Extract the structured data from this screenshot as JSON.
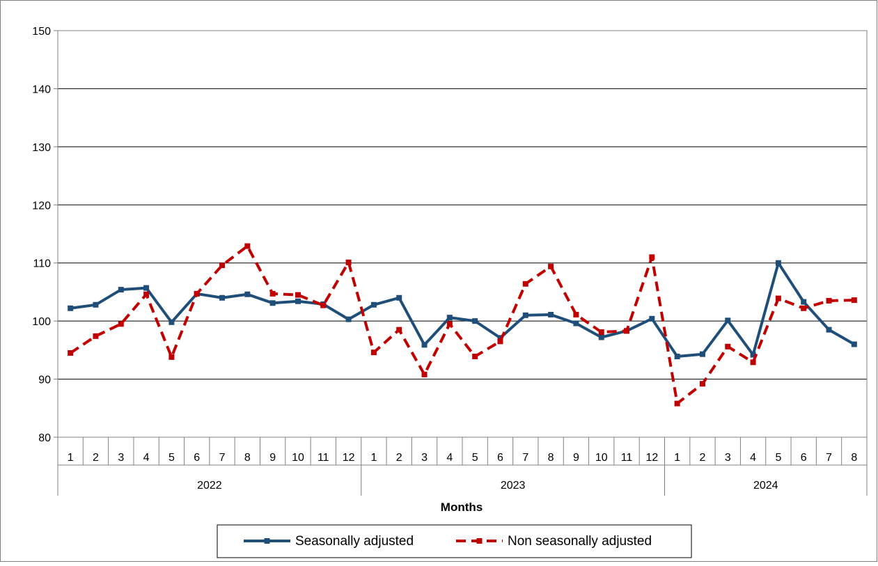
{
  "chart_data": {
    "type": "line",
    "xlabel": "Months",
    "ylabel": "",
    "ylim": [
      80,
      150
    ],
    "yticks": [
      80,
      90,
      100,
      110,
      120,
      130,
      140,
      150
    ],
    "grid": "horizontal",
    "legend_position": "bottom",
    "groups": [
      {
        "label": "2022",
        "months": [
          "1",
          "2",
          "3",
          "4",
          "5",
          "6",
          "7",
          "8",
          "9",
          "10",
          "11",
          "12"
        ]
      },
      {
        "label": "2023",
        "months": [
          "1",
          "2",
          "3",
          "4",
          "5",
          "6",
          "7",
          "8",
          "9",
          "10",
          "11",
          "12"
        ]
      },
      {
        "label": "2024",
        "months": [
          "1",
          "2",
          "3",
          "4",
          "5",
          "6",
          "7",
          "8"
        ]
      }
    ],
    "series": [
      {
        "name": "Seasonally adjusted",
        "color": "#1f4e79",
        "dash": "solid",
        "values": [
          102.2,
          102.8,
          105.4,
          105.7,
          99.8,
          104.7,
          104.0,
          104.6,
          103.1,
          103.4,
          102.9,
          100.3,
          102.8,
          104.0,
          95.9,
          100.6,
          100.0,
          97.1,
          101.0,
          101.1,
          99.6,
          97.2,
          98.3,
          100.4,
          93.9,
          94.3,
          100.1,
          94.2,
          110.0,
          103.3,
          98.5,
          96.0
        ]
      },
      {
        "name": "Non seasonally adjusted",
        "color": "#c00000",
        "dash": "dashed",
        "values": [
          94.5,
          97.4,
          99.5,
          104.6,
          93.8,
          104.7,
          109.6,
          112.9,
          104.7,
          104.5,
          102.7,
          110.1,
          94.6,
          98.5,
          90.8,
          99.5,
          93.9,
          96.5,
          106.4,
          109.4,
          101.1,
          98.1,
          98.3,
          111.0,
          85.8,
          89.2,
          95.6,
          92.9,
          103.9,
          102.2,
          103.5,
          103.6
        ]
      }
    ]
  }
}
